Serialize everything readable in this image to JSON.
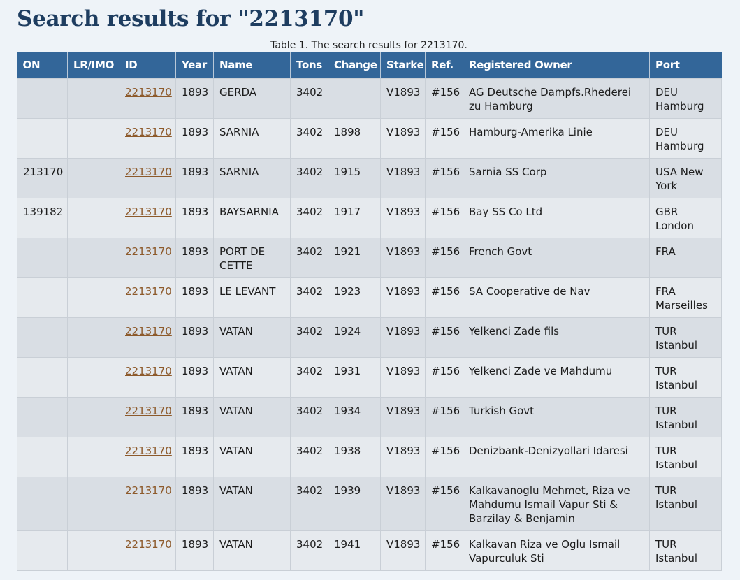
{
  "page": {
    "title": "Search results for \"2213170\"",
    "caption": "Table 1. The search results for 2213170."
  },
  "table": {
    "headers": [
      "ON",
      "LR/IMO",
      "ID",
      "Year",
      "Name",
      "Tons",
      "Change",
      "Starke",
      "Ref.",
      "Registered Owner",
      "Port"
    ],
    "rows": [
      {
        "on": "",
        "lrimo": "",
        "id": "2213170",
        "year": "1893",
        "name": "GERDA",
        "tons": "3402",
        "change": "",
        "starke": "V1893",
        "ref": "#156",
        "owner": "AG Deutsche Dampfs.Rhederei zu Hamburg",
        "port": "DEU Hamburg"
      },
      {
        "on": "",
        "lrimo": "",
        "id": "2213170",
        "year": "1893",
        "name": "SARNIA",
        "tons": "3402",
        "change": "1898",
        "starke": "V1893",
        "ref": "#156",
        "owner": "Hamburg-Amerika Linie",
        "port": "DEU Hamburg"
      },
      {
        "on": "213170",
        "lrimo": "",
        "id": "2213170",
        "year": "1893",
        "name": "SARNIA",
        "tons": "3402",
        "change": "1915",
        "starke": "V1893",
        "ref": "#156",
        "owner": "Sarnia SS Corp",
        "port": "USA New York"
      },
      {
        "on": "139182",
        "lrimo": "",
        "id": "2213170",
        "year": "1893",
        "name": "BAYSARNIA",
        "tons": "3402",
        "change": "1917",
        "starke": "V1893",
        "ref": "#156",
        "owner": "Bay SS Co Ltd",
        "port": "GBR London"
      },
      {
        "on": "",
        "lrimo": "",
        "id": "2213170",
        "year": "1893",
        "name": "PORT DE CETTE",
        "tons": "3402",
        "change": "1921",
        "starke": "V1893",
        "ref": "#156",
        "owner": "French Govt",
        "port": "FRA"
      },
      {
        "on": "",
        "lrimo": "",
        "id": "2213170",
        "year": "1893",
        "name": "LE LEVANT",
        "tons": "3402",
        "change": "1923",
        "starke": "V1893",
        "ref": "#156",
        "owner": "SA Cooperative de Nav",
        "port": "FRA Marseilles"
      },
      {
        "on": "",
        "lrimo": "",
        "id": "2213170",
        "year": "1893",
        "name": "VATAN",
        "tons": "3402",
        "change": "1924",
        "starke": "V1893",
        "ref": "#156",
        "owner": "Yelkenci Zade fils",
        "port": "TUR Istanbul"
      },
      {
        "on": "",
        "lrimo": "",
        "id": "2213170",
        "year": "1893",
        "name": "VATAN",
        "tons": "3402",
        "change": "1931",
        "starke": "V1893",
        "ref": "#156",
        "owner": "Yelkenci Zade ve Mahdumu",
        "port": "TUR Istanbul"
      },
      {
        "on": "",
        "lrimo": "",
        "id": "2213170",
        "year": "1893",
        "name": "VATAN",
        "tons": "3402",
        "change": "1934",
        "starke": "V1893",
        "ref": "#156",
        "owner": "Turkish Govt",
        "port": "TUR Istanbul"
      },
      {
        "on": "",
        "lrimo": "",
        "id": "2213170",
        "year": "1893",
        "name": "VATAN",
        "tons": "3402",
        "change": "1938",
        "starke": "V1893",
        "ref": "#156",
        "owner": "Denizbank-Denizyollari Idaresi",
        "port": "TUR Istanbul"
      },
      {
        "on": "",
        "lrimo": "",
        "id": "2213170",
        "year": "1893",
        "name": "VATAN",
        "tons": "3402",
        "change": "1939",
        "starke": "V1893",
        "ref": "#156",
        "owner": "Kalkavanoglu Mehmet, Riza ve Mahdumu Ismail Vapur Sti & Barzilay & Benjamin",
        "port": "TUR Istanbul"
      },
      {
        "on": "",
        "lrimo": "",
        "id": "2213170",
        "year": "1893",
        "name": "VATAN",
        "tons": "3402",
        "change": "1941",
        "starke": "V1893",
        "ref": "#156",
        "owner": "Kalkavan Riza ve Oglu Ismail Vapurculuk Sti",
        "port": "TUR Istanbul"
      }
    ]
  },
  "colors": {
    "title": "#1e3d60",
    "header_bg": "#336699",
    "row_odd": "#d9dee4",
    "row_even": "#e6eaee",
    "link": "#8d5a2b"
  }
}
